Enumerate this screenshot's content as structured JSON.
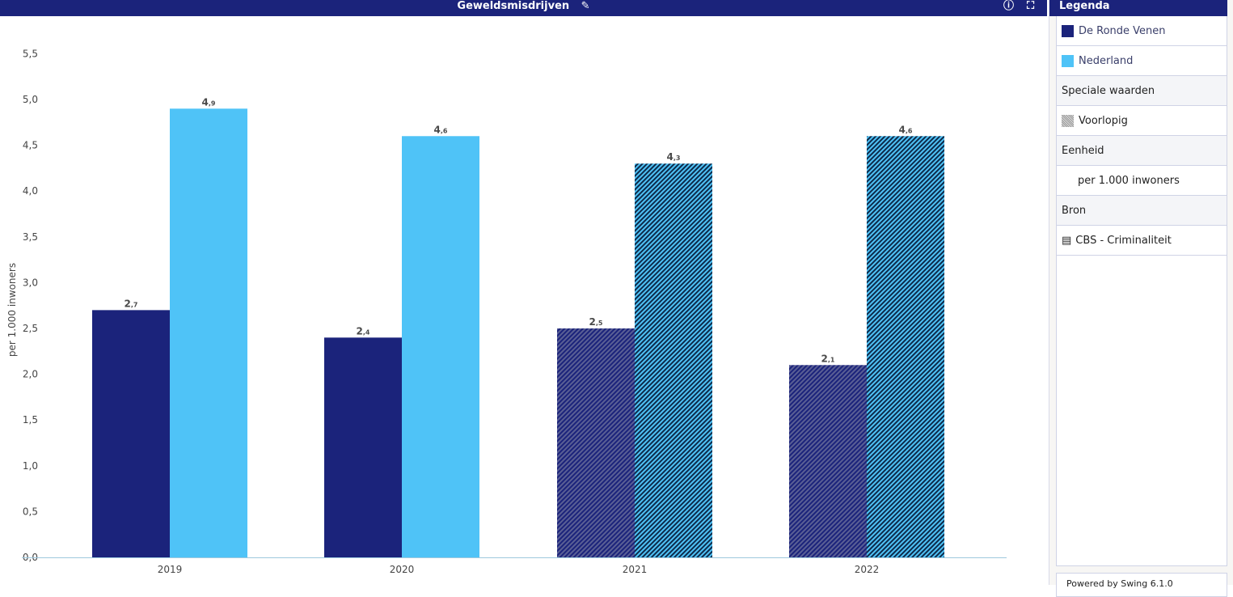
{
  "header": {
    "title": "Geweldsmisdrijven"
  },
  "legend": {
    "title": "Legenda",
    "series": [
      {
        "name": "De Ronde Venen",
        "color": "#1b237b"
      },
      {
        "name": "Nederland",
        "color": "#4fc3f7"
      }
    ],
    "special_heading": "Speciale waarden",
    "special": [
      {
        "name": "Voorlopig"
      }
    ],
    "unit_heading": "Eenheid",
    "unit": "per 1.000 inwoners",
    "source_heading": "Bron",
    "source": "CBS - Criminaliteit",
    "powered": "Powered by Swing 6.1.0"
  },
  "chart_data": {
    "type": "bar",
    "title": "Geweldsmisdrijven",
    "xlabel": "",
    "ylabel": "per 1.000 inwoners",
    "ylim": [
      0,
      5.5
    ],
    "yticks": [
      "0,0",
      "0,5",
      "1,0",
      "1,5",
      "2,0",
      "2,5",
      "3,0",
      "3,5",
      "4,0",
      "4,5",
      "5,0",
      "5,5"
    ],
    "categories": [
      "2019",
      "2020",
      "2021",
      "2022"
    ],
    "provisional": [
      false,
      false,
      true,
      true
    ],
    "series": [
      {
        "name": "De Ronde Venen",
        "values": [
          2.7,
          2.4,
          2.5,
          2.1
        ],
        "labels": [
          [
            "2",
            ",7"
          ],
          [
            "2",
            ",4"
          ],
          [
            "2",
            ",5"
          ],
          [
            "2",
            ",1"
          ]
        ]
      },
      {
        "name": "Nederland",
        "values": [
          4.9,
          4.6,
          4.3,
          4.6
        ],
        "labels": [
          [
            "4",
            ",9"
          ],
          [
            "4",
            ",6"
          ],
          [
            "4",
            ",3"
          ],
          [
            "4",
            ",6"
          ]
        ]
      }
    ]
  }
}
